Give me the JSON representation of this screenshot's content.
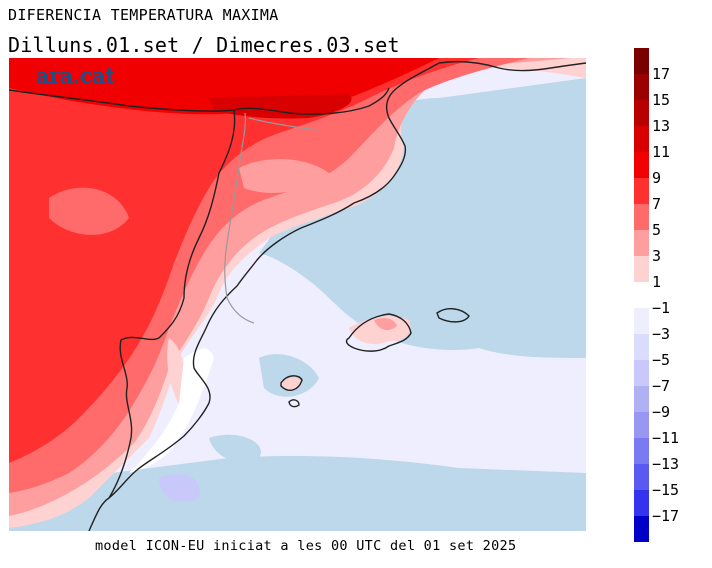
{
  "header": {
    "title": "DIFERENCIA TEMPERATURA MAXIMA",
    "subtitle": "Dilluns.01.set / Dimecres.03.set"
  },
  "brand": "ara.cat",
  "footer": "model ICON-EU iniciat a les 00 UTC del 01 set 2025",
  "colorbar": {
    "bins": [
      {
        "color": "#7a0000"
      },
      {
        "color": "#9a0000"
      },
      {
        "color": "#b80000"
      },
      {
        "color": "#d80000"
      },
      {
        "color": "#f00000"
      },
      {
        "color": "#ff3030"
      },
      {
        "color": "#ff6a6a"
      },
      {
        "color": "#ff9e9e"
      },
      {
        "color": "#ffd2d2"
      },
      {
        "color": "#ffffff"
      },
      {
        "color": "#eeeeff"
      },
      {
        "color": "#dcdcff"
      },
      {
        "color": "#c8c8fa"
      },
      {
        "color": "#b0b0f5"
      },
      {
        "color": "#9898f2"
      },
      {
        "color": "#7a7af2"
      },
      {
        "color": "#5a5af0"
      },
      {
        "color": "#3434ee"
      },
      {
        "color": "#0000c8"
      }
    ],
    "labels": [
      "17",
      "15",
      "13",
      "11",
      "9",
      "7",
      "5",
      "3",
      "1",
      "−1",
      "−3",
      "−5",
      "−7",
      "−9",
      "−11",
      "−13",
      "−15",
      "−17"
    ]
  }
}
